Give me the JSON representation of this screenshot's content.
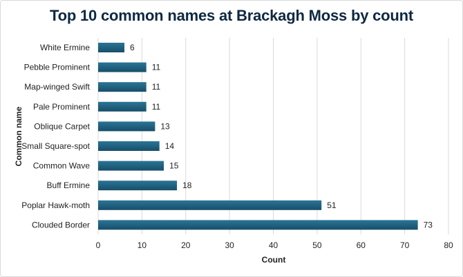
{
  "chart_data": {
    "type": "bar",
    "orientation": "horizontal",
    "title": "Top 10 common names at Brackagh Moss by count",
    "xlabel": "Count",
    "ylabel": "Common name",
    "categories": [
      "White Ermine",
      "Pebble Prominent",
      "Map-winged Swift",
      "Pale Prominent",
      "Oblique Carpet",
      "Small Square-spot",
      "Common Wave",
      "Buff Ermine",
      "Poplar Hawk-moth",
      "Clouded Border"
    ],
    "values": [
      6,
      11,
      11,
      11,
      13,
      14,
      15,
      18,
      51,
      73
    ],
    "xlim": [
      0,
      80
    ],
    "xticks": [
      0,
      10,
      20,
      30,
      40,
      50,
      60,
      70,
      80
    ],
    "grid": "vertical",
    "data_labels": true,
    "bar_color": "#1f5f7f"
  }
}
